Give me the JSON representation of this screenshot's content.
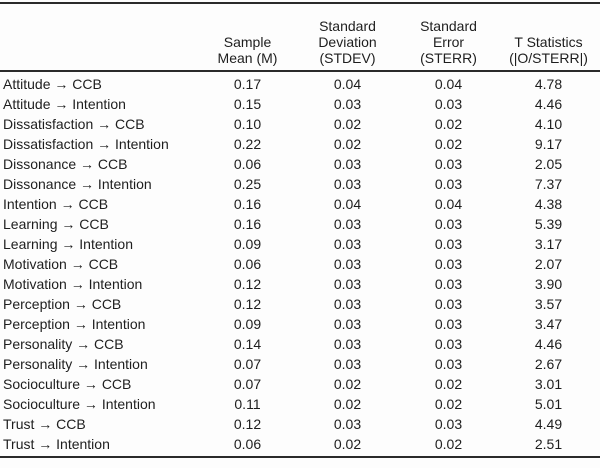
{
  "table": {
    "columns": [
      {
        "label": ""
      },
      {
        "label": "Sample Mean (M)"
      },
      {
        "label": "Standard Deviation (STDEV)"
      },
      {
        "label": "Standard Error (STERR)"
      },
      {
        "label": "T Statistics (|O/STERR|)"
      }
    ],
    "rows": [
      {
        "label": "Attitude → CCB",
        "mean": "0.17",
        "stdev": "0.04",
        "sterr": "0.04",
        "t": "4.78"
      },
      {
        "label": "Attitude → Intention",
        "mean": "0.15",
        "stdev": "0.03",
        "sterr": "0.03",
        "t": "4.46"
      },
      {
        "label": "Dissatisfaction → CCB",
        "mean": "0.10",
        "stdev": "0.02",
        "sterr": "0.02",
        "t": "4.10"
      },
      {
        "label": "Dissatisfaction → Intention",
        "mean": "0.22",
        "stdev": "0.02",
        "sterr": "0.02",
        "t": "9.17"
      },
      {
        "label": "Dissonance → CCB",
        "mean": "0.06",
        "stdev": "0.03",
        "sterr": "0.03",
        "t": "2.05"
      },
      {
        "label": "Dissonance → Intention",
        "mean": "0.25",
        "stdev": "0.03",
        "sterr": "0.03",
        "t": "7.37"
      },
      {
        "label": "Intention → CCB",
        "mean": "0.16",
        "stdev": "0.04",
        "sterr": "0.04",
        "t": "4.38"
      },
      {
        "label": "Learning → CCB",
        "mean": "0.16",
        "stdev": "0.03",
        "sterr": "0.03",
        "t": "5.39"
      },
      {
        "label": "Learning → Intention",
        "mean": "0.09",
        "stdev": "0.03",
        "sterr": "0.03",
        "t": "3.17"
      },
      {
        "label": "Motivation → CCB",
        "mean": "0.06",
        "stdev": "0.03",
        "sterr": "0.03",
        "t": "2.07"
      },
      {
        "label": "Motivation → Intention",
        "mean": "0.12",
        "stdev": "0.03",
        "sterr": "0.03",
        "t": "3.90"
      },
      {
        "label": "Perception → CCB",
        "mean": "0.12",
        "stdev": "0.03",
        "sterr": "0.03",
        "t": "3.57"
      },
      {
        "label": "Perception → Intention",
        "mean": "0.09",
        "stdev": "0.03",
        "sterr": "0.03",
        "t": "3.47"
      },
      {
        "label": "Personality → CCB",
        "mean": "0.14",
        "stdev": "0.03",
        "sterr": "0.03",
        "t": "4.46"
      },
      {
        "label": "Personality → Intention",
        "mean": "0.07",
        "stdev": "0.03",
        "sterr": "0.03",
        "t": "2.67"
      },
      {
        "label": "Socioculture → CCB",
        "mean": "0.07",
        "stdev": "0.02",
        "sterr": "0.02",
        "t": "3.01"
      },
      {
        "label": "Socioculture → Intention",
        "mean": "0.11",
        "stdev": "0.02",
        "sterr": "0.02",
        "t": "5.01"
      },
      {
        "label": "Trust → CCB",
        "mean": "0.12",
        "stdev": "0.03",
        "sterr": "0.03",
        "t": "4.49"
      },
      {
        "label": "Trust → Intention",
        "mean": "0.06",
        "stdev": "0.02",
        "sterr": "0.02",
        "t": "2.51"
      }
    ]
  },
  "colors": {
    "text": "#1e1e1e",
    "rule": "#2b2b2b",
    "background": "#fdfdfd"
  }
}
